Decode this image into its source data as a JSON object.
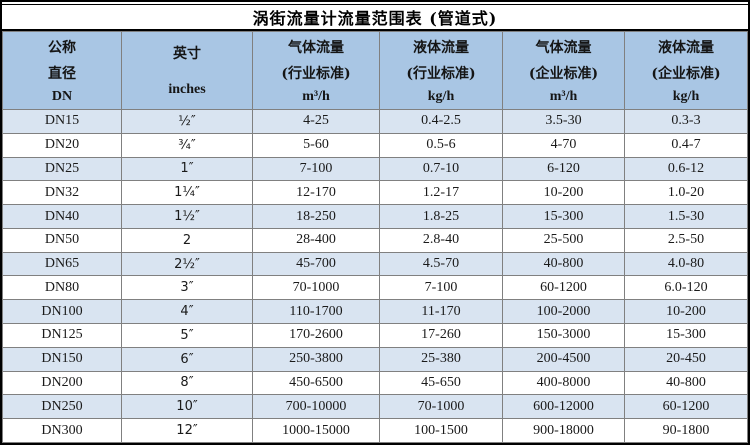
{
  "title": "涡街流量计流量范围表 (管道式)",
  "colors": {
    "header_bg": "#a9c6e4",
    "stripe_bg": "#d9e4f1",
    "grid_line": "#808080",
    "frame_border": "#000000",
    "text": "#1a1a1a"
  },
  "table": {
    "columns": [
      {
        "id": "dn",
        "lines": [
          "公称",
          "直径",
          "DN"
        ]
      },
      {
        "id": "inches",
        "lines": [
          "英寸",
          "inches"
        ]
      },
      {
        "id": "gas-industry",
        "lines": [
          "气体流量",
          "(行业标准)",
          "m³/h"
        ]
      },
      {
        "id": "liquid-industry",
        "lines": [
          "液体流量",
          "(行业标准)",
          "kg/h"
        ]
      },
      {
        "id": "gas-enterprise",
        "lines": [
          "气体流量",
          "(企业标准)",
          "m³/h"
        ]
      },
      {
        "id": "liquid-enterprise",
        "lines": [
          "液体流量",
          "(企业标准)",
          "kg/h"
        ]
      }
    ],
    "rows": [
      {
        "cells": [
          "DN15",
          "½″",
          "4-25",
          "0.4-2.5",
          "3.5-30",
          "0.3-3"
        ]
      },
      {
        "cells": [
          "DN20",
          "¾″",
          "5-60",
          "0.5-6",
          "4-70",
          "0.4-7"
        ]
      },
      {
        "cells": [
          "DN25",
          "1″",
          "7-100",
          "0.7-10",
          "6-120",
          "0.6-12"
        ]
      },
      {
        "cells": [
          "DN32",
          "1¼″",
          "12-170",
          "1.2-17",
          "10-200",
          "1.0-20"
        ]
      },
      {
        "cells": [
          "DN40",
          "1½″",
          "18-250",
          "1.8-25",
          "15-300",
          "1.5-30"
        ]
      },
      {
        "cells": [
          "DN50",
          "2",
          "28-400",
          "2.8-40",
          "25-500",
          "2.5-50"
        ]
      },
      {
        "cells": [
          "DN65",
          "2½″",
          "45-700",
          "4.5-70",
          "40-800",
          "4.0-80"
        ]
      },
      {
        "cells": [
          "DN80",
          "3″",
          "70-1000",
          "7-100",
          "60-1200",
          "6.0-120"
        ]
      },
      {
        "cells": [
          "DN100",
          "4″",
          "110-1700",
          "11-170",
          "100-2000",
          "10-200"
        ]
      },
      {
        "cells": [
          "DN125",
          "5″",
          "170-2600",
          "17-260",
          "150-3000",
          "15-300"
        ]
      },
      {
        "cells": [
          "DN150",
          "6″",
          "250-3800",
          "25-380",
          "200-4500",
          "20-450"
        ]
      },
      {
        "cells": [
          "DN200",
          "8″",
          "450-6500",
          "45-650",
          "400-8000",
          "40-800"
        ]
      },
      {
        "cells": [
          "DN250",
          "10″",
          "700-10000",
          "70-1000",
          "600-12000",
          "60-1200"
        ]
      },
      {
        "cells": [
          "DN300",
          "12″",
          "1000-15000",
          "100-1500",
          "900-18000",
          "90-1800"
        ]
      }
    ]
  }
}
